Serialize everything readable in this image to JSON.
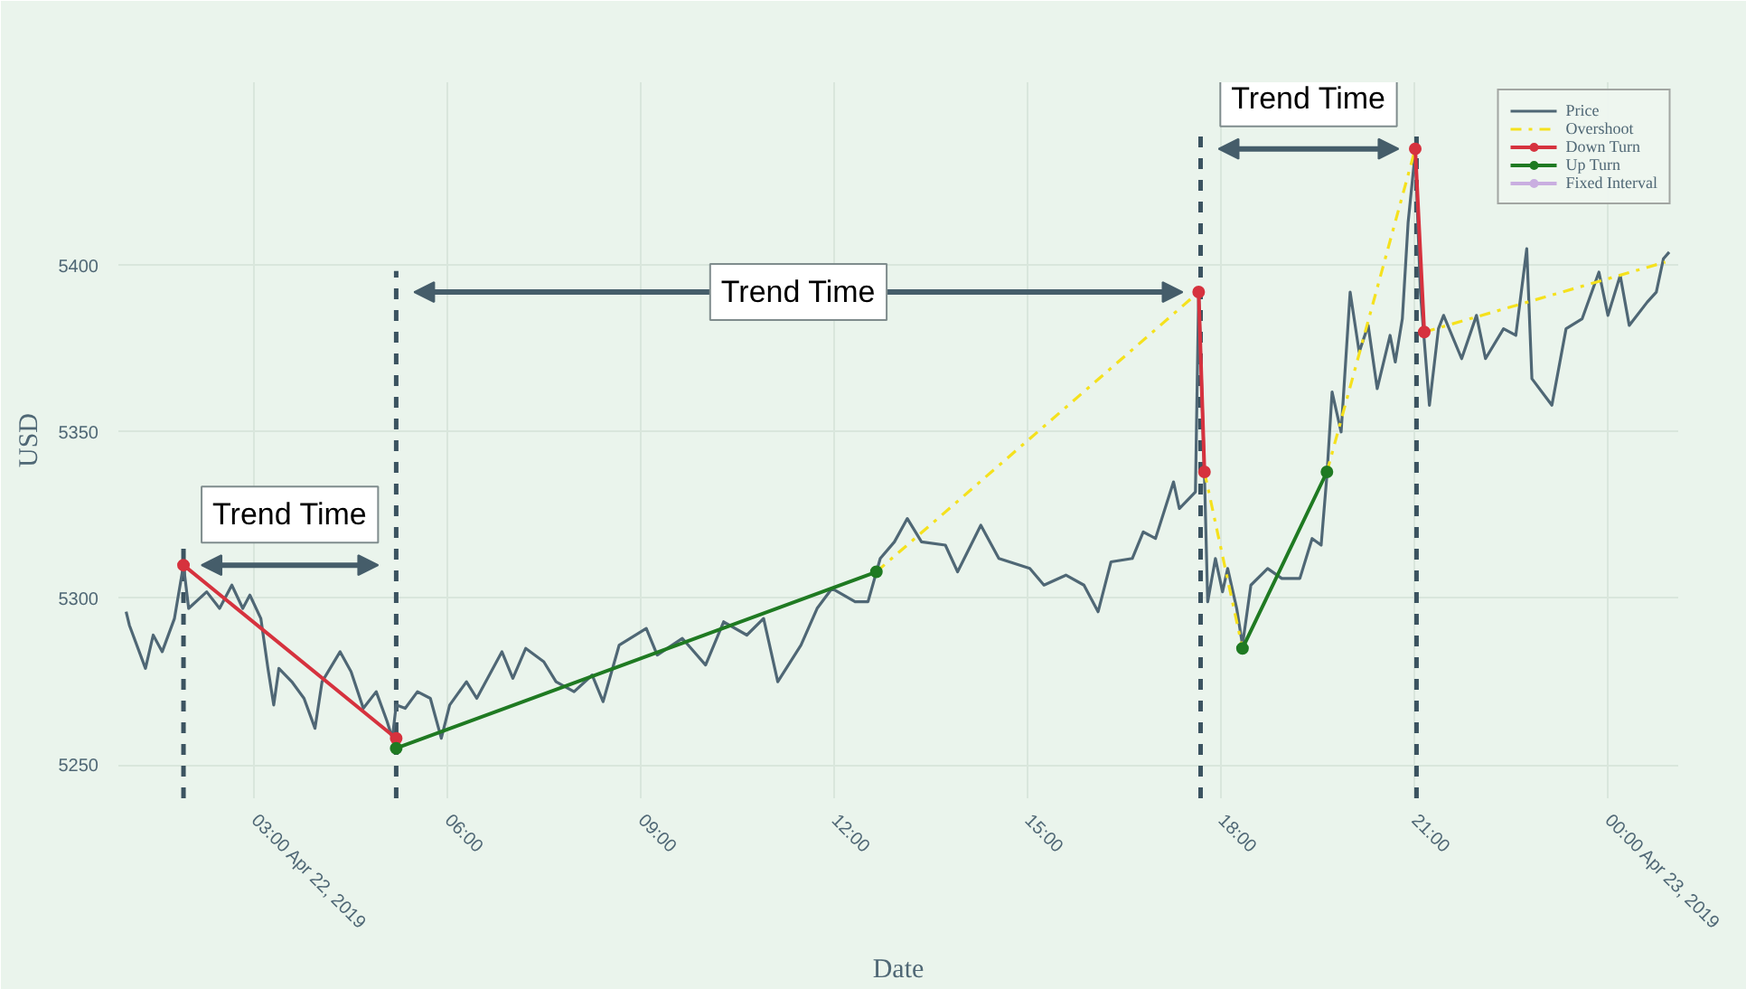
{
  "chart_data": {
    "type": "line",
    "xlabel": "Date",
    "ylabel": "USD",
    "xlim": [
      0.9,
      25.1
    ],
    "ylim": [
      5240,
      5455
    ],
    "xticks": [
      {
        "value": 3,
        "label": "03:00 Apr 22, 2019"
      },
      {
        "value": 6,
        "label": "06:00"
      },
      {
        "value": 9,
        "label": "09:00"
      },
      {
        "value": 12,
        "label": "12:00"
      },
      {
        "value": 15,
        "label": "15:00"
      },
      {
        "value": 18,
        "label": "18:00"
      },
      {
        "value": 21,
        "label": "21:00"
      },
      {
        "value": 24,
        "label": "00:00 Apr 23, 2019"
      }
    ],
    "yticks": [
      5250,
      5300,
      5350,
      5400
    ],
    "grid": true,
    "legend": "top right",
    "series": [
      {
        "name": "Price",
        "color": "#4f6775",
        "x": [
          1.02,
          1.07,
          1.32,
          1.44,
          1.58,
          1.77,
          1.91,
          1.99,
          2.27,
          2.47,
          2.66,
          2.83,
          2.94,
          3.11,
          3.22,
          3.31,
          3.39,
          3.59,
          3.78,
          3.95,
          4.06,
          4.34,
          4.51,
          4.7,
          4.9,
          5.07,
          5.15,
          5.21,
          5.35,
          5.54,
          5.74,
          5.91,
          6.04,
          6.3,
          6.46,
          6.85,
          7.02,
          7.22,
          7.5,
          7.69,
          7.97,
          8.25,
          8.42,
          8.67,
          9.09,
          9.26,
          9.65,
          10.01,
          10.29,
          10.65,
          10.91,
          11.13,
          11.49,
          11.74,
          11.97,
          12.33,
          12.53,
          12.72,
          12.94,
          13.14,
          13.36,
          13.73,
          13.92,
          14.28,
          14.56,
          15.04,
          15.26,
          15.6,
          15.88,
          16.1,
          16.3,
          16.63,
          16.8,
          16.99,
          17.27,
          17.36,
          17.61,
          17.66,
          17.75,
          17.8,
          17.92,
          18.03,
          18.11,
          18.25,
          18.34,
          18.47,
          18.73,
          18.95,
          19.23,
          19.42,
          19.56,
          19.65,
          19.73,
          19.87,
          20.01,
          20.15,
          20.29,
          20.43,
          20.63,
          20.71,
          20.82,
          20.91,
          21.02,
          21.1,
          21.24,
          21.38,
          21.46,
          21.74,
          21.97,
          22.11,
          22.39,
          22.58,
          22.75,
          22.83,
          23.14,
          23.36,
          23.61,
          23.87,
          24.01,
          24.2,
          24.34,
          24.62,
          24.76,
          24.87,
          24.96
        ],
        "values": [
          5296,
          5292,
          5279,
          5289,
          5284,
          5294,
          5310,
          5297,
          5302,
          5297,
          5304,
          5297,
          5301,
          5294,
          5279,
          5268,
          5279,
          5275,
          5270,
          5261,
          5275,
          5284,
          5278,
          5267,
          5272,
          5263,
          5258,
          5268,
          5267,
          5272,
          5270,
          5258,
          5268,
          5275,
          5270,
          5284,
          5276,
          5285,
          5281,
          5275,
          5272,
          5277,
          5269,
          5286,
          5291,
          5283,
          5288,
          5280,
          5293,
          5289,
          5294,
          5275,
          5286,
          5297,
          5303,
          5299,
          5299,
          5312,
          5317,
          5324,
          5317,
          5316,
          5308,
          5322,
          5312,
          5309,
          5304,
          5307,
          5304,
          5296,
          5311,
          5312,
          5320,
          5318,
          5335,
          5327,
          5332,
          5392,
          5337,
          5299,
          5312,
          5302,
          5309,
          5297,
          5286,
          5304,
          5309,
          5306,
          5306,
          5318,
          5316,
          5337,
          5362,
          5350,
          5392,
          5374,
          5382,
          5363,
          5379,
          5371,
          5384,
          5413,
          5434,
          5392,
          5358,
          5381,
          5385,
          5372,
          5385,
          5372,
          5381,
          5379,
          5405,
          5366,
          5358,
          5381,
          5384,
          5398,
          5385,
          5397,
          5382,
          5389,
          5392,
          5402,
          5404
        ]
      },
      {
        "name": "Overshoot",
        "color": "#f5e11d",
        "line_style": "dashdot",
        "x": [
          12.66,
          17.66,
          null,
          17.75,
          18.34,
          null,
          19.65,
          21.02,
          null,
          21.16,
          24.9
        ],
        "values": [
          5308,
          5392,
          null,
          5338,
          5285,
          null,
          5338,
          5435,
          null,
          5380,
          5401
        ]
      },
      {
        "name": "Down Turn",
        "color": "#d6323e",
        "marker": "circle",
        "x": [
          1.91,
          5.21,
          null,
          17.66,
          17.75,
          null,
          21.02,
          21.16
        ],
        "values": [
          5310,
          5258,
          null,
          5392,
          5338,
          null,
          5435,
          5380
        ]
      },
      {
        "name": "Up Turn",
        "color": "#1f7a22",
        "marker": "circle",
        "x": [
          5.21,
          12.66,
          null,
          18.34,
          19.65
        ],
        "values": [
          5255,
          5308,
          null,
          5285,
          5338
        ]
      },
      {
        "name": "Fixed Interval",
        "color": "#c9aee0",
        "marker": "circle"
      }
    ],
    "ref_lines": [
      {
        "axis": "x",
        "value": 1.91,
        "color": "#3b5360",
        "line_style": "dashed"
      },
      {
        "axis": "x",
        "value": 5.21,
        "color": "#3b5360",
        "line_style": "dashed"
      },
      {
        "axis": "x",
        "value": 17.69,
        "color": "#3b5360",
        "line_style": "dashed"
      },
      {
        "axis": "x",
        "value": 21.04,
        "color": "#3b5360",
        "line_style": "dashed"
      }
    ],
    "annotations": [
      "Trend Time",
      "Trend Time",
      "Trend Time"
    ]
  }
}
